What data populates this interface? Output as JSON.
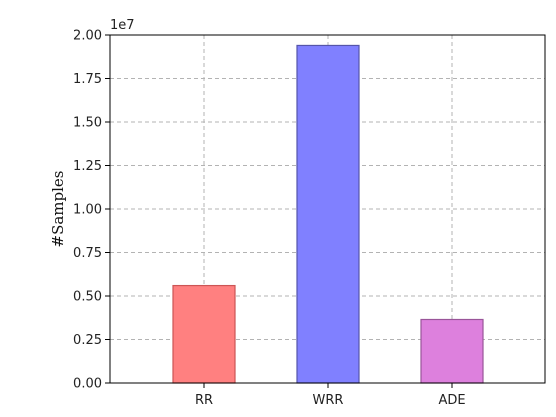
{
  "chart_data": {
    "type": "bar",
    "categories": [
      "RR",
      "WRR",
      "ADE"
    ],
    "values": [
      5600000,
      19400000,
      3650000
    ],
    "colors": [
      "#ff8080",
      "#8080ff",
      "#dd80dd"
    ],
    "edge_colors": [
      "#cc5555",
      "#5555aa",
      "#995599"
    ],
    "title": "",
    "xlabel": "",
    "ylabel": "#Samples",
    "ylim": [
      0,
      20000000
    ],
    "yticks": [
      0,
      2500000,
      5000000,
      7500000,
      10000000,
      12500000,
      15000000,
      17500000,
      20000000
    ],
    "ytick_labels": [
      "0.00",
      "0.25",
      "0.50",
      "0.75",
      "1.00",
      "1.25",
      "1.50",
      "1.75",
      "2.00"
    ],
    "offset_text": "1e7",
    "grid": true
  }
}
